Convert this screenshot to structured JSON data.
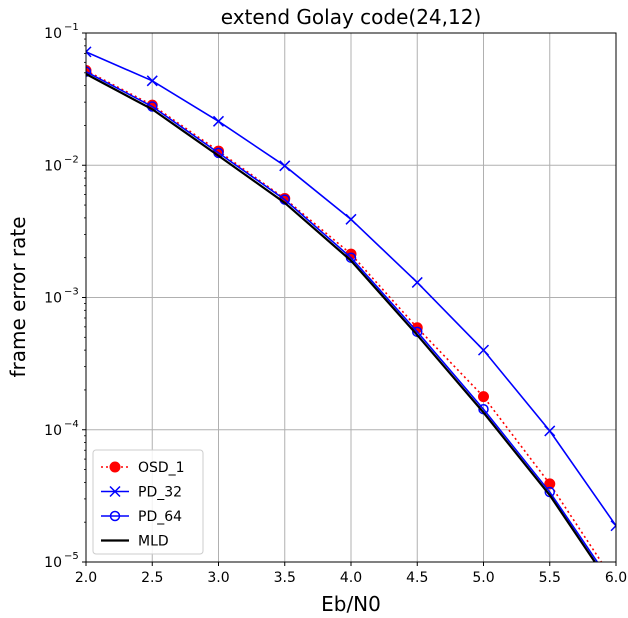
{
  "chart_data": {
    "type": "line",
    "title": "extend Golay code(24,12)",
    "xlabel": "Eb/N0",
    "ylabel": "frame error rate",
    "xlim": [
      2.0,
      6.0
    ],
    "ylim": [
      1e-05,
      0.1
    ],
    "yscale": "log",
    "grid": true,
    "legend_position": "lower-left",
    "x_ticks": [
      "2.0",
      "2.5",
      "3.0",
      "3.5",
      "4.0",
      "4.5",
      "5.0",
      "5.5",
      "6.0"
    ],
    "y_ticks": [
      {
        "base": "10",
        "exp": "−5"
      },
      {
        "base": "10",
        "exp": "−4"
      },
      {
        "base": "10",
        "exp": "−3"
      },
      {
        "base": "10",
        "exp": "−2"
      },
      {
        "base": "10",
        "exp": "−1"
      }
    ],
    "series": [
      {
        "name": "OSD_1",
        "color": "#ff0000",
        "style": "dotted",
        "marker": "filled-circle",
        "x": [
          2.0,
          2.5,
          3.0,
          3.5,
          4.0,
          4.5,
          5.0,
          5.5,
          6.0
        ],
        "y": [
          0.052,
          0.0285,
          0.0128,
          0.0056,
          0.00213,
          0.00059,
          0.000178,
          3.9e-05,
          6.8e-06
        ]
      },
      {
        "name": "PD_32",
        "color": "#0000ff",
        "style": "solid",
        "marker": "x",
        "x": [
          2.0,
          2.5,
          3.0,
          3.5,
          4.0,
          4.5,
          5.0,
          5.5,
          6.0
        ],
        "y": [
          0.072,
          0.0435,
          0.0215,
          0.0099,
          0.0039,
          0.0013,
          0.0004,
          9.8e-05,
          1.88e-05
        ]
      },
      {
        "name": "PD_64",
        "color": "#0000ff",
        "style": "solid",
        "marker": "open-circle",
        "x": [
          2.0,
          2.5,
          3.0,
          3.5,
          4.0,
          4.5,
          5.0,
          5.5,
          6.0
        ],
        "y": [
          0.051,
          0.0278,
          0.0124,
          0.0055,
          0.002,
          0.00055,
          0.000143,
          3.38e-05,
          6.2e-06
        ]
      },
      {
        "name": "MLD",
        "color": "#000000",
        "style": "solid",
        "marker": "none",
        "x": [
          2.0,
          2.5,
          3.0,
          3.5,
          4.0,
          4.5,
          5.0,
          5.5,
          6.0
        ],
        "y": [
          0.049,
          0.0265,
          0.0118,
          0.0052,
          0.0019,
          0.00052,
          0.000135,
          3.2e-05,
          5.8e-06
        ]
      }
    ]
  }
}
